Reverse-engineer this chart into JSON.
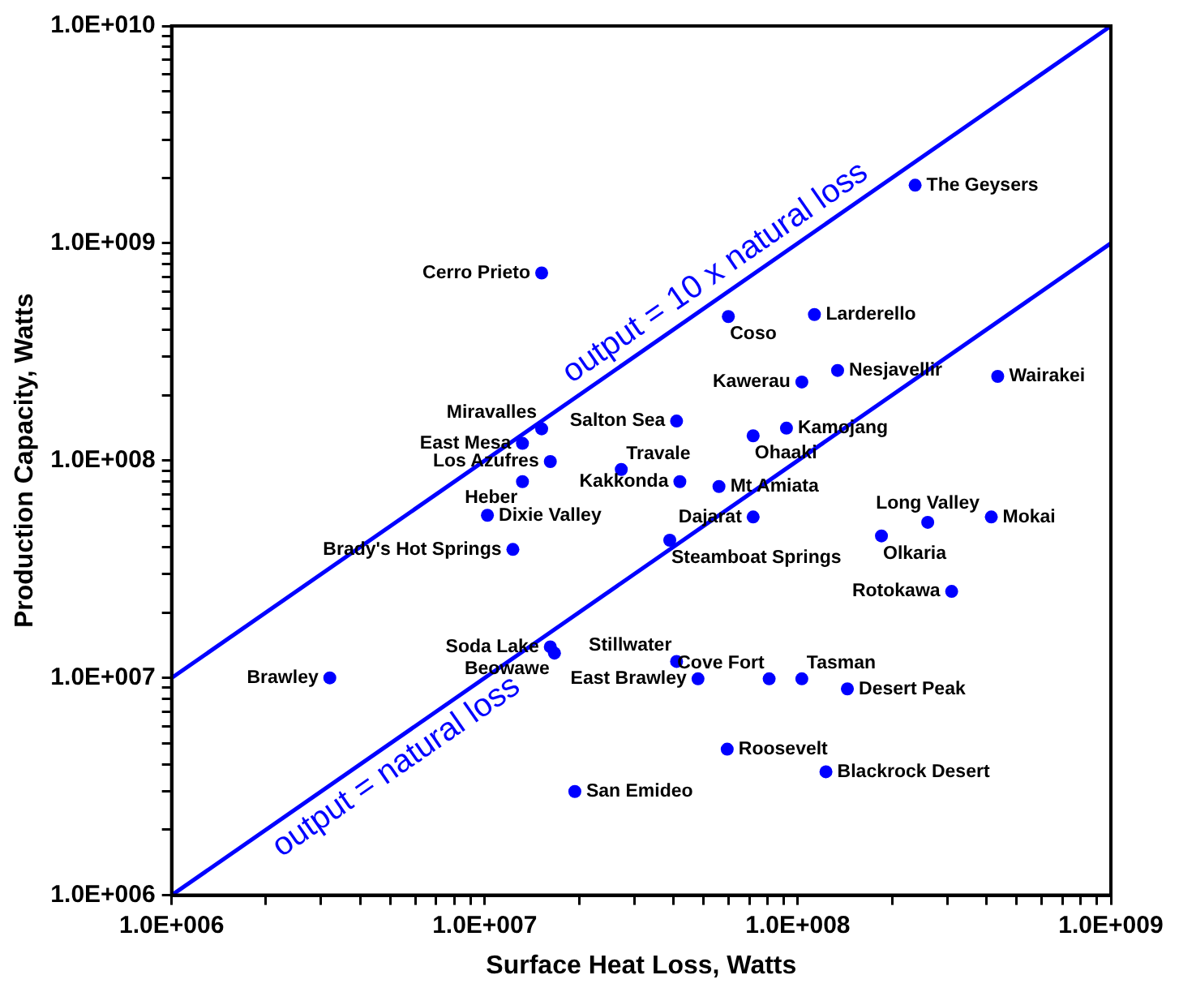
{
  "chart_data": {
    "type": "scatter",
    "xlabel": "Surface Heat Loss, Watts",
    "ylabel": "Production Capacity, Watts",
    "log": "xy",
    "legend": false,
    "xlim": [
      1000000,
      1000000000
    ],
    "ylim": [
      1000000,
      10000000000
    ],
    "xticks": [
      {
        "value": 1000000,
        "label": "1.0E+006"
      },
      {
        "value": 2000000,
        "label": null
      },
      {
        "value": 3000000,
        "label": null
      },
      {
        "value": 4000000,
        "label": null
      },
      {
        "value": 5000000,
        "label": null
      },
      {
        "value": 6000000,
        "label": null
      },
      {
        "value": 7000000,
        "label": null
      },
      {
        "value": 8000000,
        "label": null
      },
      {
        "value": 9000000,
        "label": null
      },
      {
        "value": 10000000,
        "label": "1.0E+007"
      },
      {
        "value": 20000000,
        "label": null
      },
      {
        "value": 30000000,
        "label": null
      },
      {
        "value": 40000000,
        "label": null
      },
      {
        "value": 50000000,
        "label": null
      },
      {
        "value": 60000000,
        "label": null
      },
      {
        "value": 70000000,
        "label": null
      },
      {
        "value": 80000000,
        "label": null
      },
      {
        "value": 90000000,
        "label": null
      },
      {
        "value": 100000000,
        "label": "1.0E+008"
      },
      {
        "value": 200000000,
        "label": null
      },
      {
        "value": 300000000,
        "label": null
      },
      {
        "value": 400000000,
        "label": null
      },
      {
        "value": 500000000,
        "label": null
      },
      {
        "value": 600000000,
        "label": null
      },
      {
        "value": 700000000,
        "label": null
      },
      {
        "value": 800000000,
        "label": null
      },
      {
        "value": 900000000,
        "label": null
      },
      {
        "value": 1000000000,
        "label": "1.0E+009"
      }
    ],
    "yticks": [
      {
        "value": 1000000,
        "label": "1.0E+006"
      },
      {
        "value": 2000000,
        "label": null
      },
      {
        "value": 3000000,
        "label": null
      },
      {
        "value": 4000000,
        "label": null
      },
      {
        "value": 5000000,
        "label": null
      },
      {
        "value": 6000000,
        "label": null
      },
      {
        "value": 7000000,
        "label": null
      },
      {
        "value": 8000000,
        "label": null
      },
      {
        "value": 9000000,
        "label": null
      },
      {
        "value": 10000000,
        "label": "1.0E+007"
      },
      {
        "value": 20000000,
        "label": null
      },
      {
        "value": 30000000,
        "label": null
      },
      {
        "value": 40000000,
        "label": null
      },
      {
        "value": 50000000,
        "label": null
      },
      {
        "value": 60000000,
        "label": null
      },
      {
        "value": 70000000,
        "label": null
      },
      {
        "value": 80000000,
        "label": null
      },
      {
        "value": 90000000,
        "label": null
      },
      {
        "value": 100000000,
        "label": "1.0E+008"
      },
      {
        "value": 200000000,
        "label": null
      },
      {
        "value": 300000000,
        "label": null
      },
      {
        "value": 400000000,
        "label": null
      },
      {
        "value": 500000000,
        "label": null
      },
      {
        "value": 600000000,
        "label": null
      },
      {
        "value": 700000000,
        "label": null
      },
      {
        "value": 800000000,
        "label": null
      },
      {
        "value": 900000000,
        "label": null
      },
      {
        "value": 1000000000,
        "label": "1.0E+009"
      },
      {
        "value": 2000000000,
        "label": null
      },
      {
        "value": 3000000000,
        "label": null
      },
      {
        "value": 4000000000,
        "label": null
      },
      {
        "value": 5000000000,
        "label": null
      },
      {
        "value": 6000000000,
        "label": null
      },
      {
        "value": 7000000000,
        "label": null
      },
      {
        "value": 8000000000,
        "label": null
      },
      {
        "value": 9000000000,
        "label": null
      },
      {
        "value": 10000000000,
        "label": "1.0E+010"
      }
    ],
    "series": [
      {
        "marker": "circle",
        "color": "#0000ff",
        "x": [
          15200000,
          237000000,
          60000000,
          113000000,
          103000000,
          134000000,
          435000000,
          41000000,
          92000000,
          72000000,
          15200000,
          13200000,
          16200000,
          27300000,
          42000000,
          13200000,
          56000000,
          10200000,
          72000000,
          260000000,
          415000000,
          185000000,
          39000000,
          12300000,
          310000000,
          16200000,
          16700000,
          41000000,
          48000000,
          81000000,
          103000000,
          144000000,
          3200000,
          59500000,
          123000000,
          19400000
        ],
        "values": [
          730000000,
          1850000000,
          460000000,
          470000000,
          230000000,
          260000000,
          244000000,
          152000000,
          141000000,
          130000000,
          140000000,
          120000000,
          99000000,
          91000000,
          80000000,
          80000000,
          76000000,
          56000000,
          55000000,
          52000000,
          55000000,
          45000000,
          43000000,
          39000000,
          25000000,
          13900000,
          13000000,
          11900000,
          9900000,
          9900000,
          9900000,
          8900000,
          10000000,
          4700000,
          3700000,
          3000000
        ],
        "value_labels": [
          "Cerro Prieto",
          "The Geysers",
          "Coso",
          "Larderello",
          "Kawerau",
          "Nesjavellir",
          "Wairakei",
          "Salton Sea",
          "Kamojang",
          "Ohaaki",
          "Miravalles",
          "East Mesa",
          "Los Azufres",
          "Travale",
          "Kakkonda",
          "Heber",
          "Mt Amiata",
          "Dixie Valley",
          "Dajarat",
          "Long Valley",
          "Mokai",
          "Olkaria",
          "Steamboat Springs",
          "Brady's Hot Springs",
          "Rotokawa",
          "Soda Lake",
          "Beowawe",
          "Stillwater",
          "East Brawley",
          "Cove Fort",
          "Tasman",
          "Desert Peak",
          "Brawley",
          "Roosevelt",
          "Blackrock Desert",
          "San Emideo"
        ]
      },
      {
        "type": "line",
        "marker": "none",
        "color": "#0000ff",
        "x": [
          1000000,
          1000000000
        ],
        "values": [
          10000000,
          10000000000
        ]
      },
      {
        "type": "line",
        "marker": "none",
        "color": "#0000ff",
        "x": [
          1000000,
          1000000000
        ],
        "values": [
          1000000,
          1000000000
        ]
      }
    ],
    "annotations": [
      {
        "text": "output = 10 x natural loss",
        "x": 60000000,
        "y": 600000000
      },
      {
        "text": "output = natural loss",
        "x": 4750000,
        "y": 4750000
      }
    ]
  }
}
